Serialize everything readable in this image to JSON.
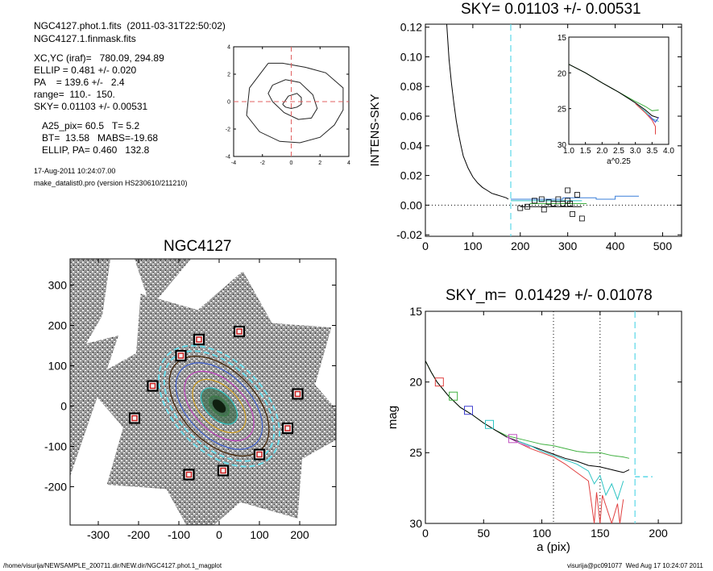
{
  "info": {
    "file": "NGC4127.phot.1.fits  (2011-03-31T22:50:02)",
    "mask": "NGC4127.1.finmask.fits",
    "xcyc": "XC,YC (iraf)=   780.09, 294.89",
    "ellip": "ELLIP = 0.481 +/- 0.020",
    "pa": "PA    = 139.6 +/-   2.4",
    "range": "range=  110.-  150.",
    "sky": "SKY= 0.01103 +/- 0.00531",
    "a25": "A25_pix= 60.5   T= 5.2",
    "bt": "BT=  13.58   MABS=-19.68",
    "ellip_pa": "ELLIP, PA= 0.460   132.8",
    "date": "17-Aug-2011 10:24:07.00",
    "program": "make_datalist0.pro (version HS230610/211210)"
  },
  "footer": {
    "path": "/home/visurija/NEWSAMPLE_200711.dir/NEW.dir/NGC4127.phot.1_magplot",
    "user": "visurija@pc091077  Wed Aug 17 10:24:07 2011"
  },
  "chart_data": [
    {
      "id": "isophote-inset",
      "type": "line",
      "title": "",
      "xlim": [
        -4,
        4
      ],
      "ylim": [
        -4,
        4
      ],
      "xticks": [
        "-4",
        "-2",
        "0",
        "2",
        "4"
      ],
      "yticks": [
        "-4",
        "-2",
        "0",
        "2",
        "4"
      ],
      "contours": [
        {
          "x": [
            -0.6,
            -0.2,
            0.4,
            0.7,
            0.7,
            0.4,
            0.0,
            -0.4,
            -0.6,
            -0.6
          ],
          "y": [
            -0.2,
            0.4,
            0.6,
            0.3,
            -0.2,
            -0.4,
            -0.5,
            -0.4,
            -0.2,
            -0.2
          ]
        },
        {
          "x": [
            -1.3,
            -0.4,
            0.6,
            1.5,
            1.8,
            1.4,
            0.5,
            -0.5,
            -1.3,
            -1.6,
            -1.3
          ],
          "y": [
            1.2,
            1.6,
            1.4,
            0.5,
            -0.5,
            -1.2,
            -1.3,
            -0.8,
            0.0,
            0.6,
            1.2
          ]
        },
        {
          "x": [
            -1.6,
            -0.6,
            1.0,
            2.4,
            3.6,
            3.6,
            3.0,
            2.0,
            0.6,
            -0.8,
            -2.2,
            -3.1,
            -2.9,
            -1.6
          ],
          "y": [
            2.8,
            2.8,
            2.5,
            2.1,
            1.0,
            -0.6,
            -1.7,
            -2.6,
            -3.0,
            -2.9,
            -2.2,
            -1.0,
            1.0,
            2.8
          ]
        }
      ],
      "crosshair": {
        "x": 0,
        "y": 0
      }
    },
    {
      "id": "sky-profile",
      "type": "line",
      "title": "SKY= 0.01103 +/- 0.00531",
      "xlabel": "",
      "ylabel": "INTENS-SKY",
      "xlim": [
        0,
        540
      ],
      "ylim": [
        -0.021,
        0.122
      ],
      "xticks": [
        "0",
        "100",
        "200",
        "300",
        "400",
        "500"
      ],
      "yticks": [
        "-0.02",
        "0.00",
        "0.02",
        "0.04",
        "0.06",
        "0.08",
        "0.10",
        "0.12"
      ],
      "profile": {
        "x": [
          45,
          50,
          55,
          60,
          65,
          70,
          75,
          80,
          90,
          100,
          110,
          120,
          130,
          140,
          150,
          160,
          170,
          175
        ],
        "y": [
          0.122,
          0.098,
          0.082,
          0.069,
          0.057,
          0.048,
          0.04,
          0.033,
          0.025,
          0.019,
          0.015,
          0.012,
          0.01,
          0.008,
          0.007,
          0.006,
          0.005,
          0.004
        ]
      },
      "sky_radius": 180,
      "boxes": {
        "x": [
          200,
          215,
          230,
          245,
          260,
          270,
          280,
          290,
          300,
          310,
          320,
          330,
          300,
          305,
          250
        ],
        "y": [
          -0.002,
          -0.001,
          0.003,
          0.004,
          0.002,
          0.001,
          0.004,
          0.001,
          0.01,
          -0.006,
          0.007,
          -0.009,
          0.003,
          0.001,
          -0.003
        ]
      },
      "segments": [
        {
          "color": "#3a7fd9",
          "x": [
            180,
            290,
            290,
            360,
            360,
            400,
            400,
            450
          ],
          "y": [
            0.004,
            0.004,
            0.005,
            0.005,
            0.004,
            0.004,
            0.006,
            0.006
          ]
        },
        {
          "color": "#2ec4c4",
          "x": [
            180,
            330
          ],
          "y": [
            0.003,
            0.003
          ]
        },
        {
          "color": "#40b040",
          "x": [
            220,
            340
          ],
          "y": [
            0.001,
            0.001
          ]
        },
        {
          "color": "#000000",
          "x": [
            200,
            330
          ],
          "y": [
            -0.001,
            -0.001
          ]
        }
      ],
      "inset": {
        "xlabel": "a^0.25",
        "xlim": [
          1.0,
          4.0
        ],
        "ylim": [
          15,
          30
        ],
        "xticks": [
          "1.0",
          "1.5",
          "2.0",
          "2.5",
          "3.0",
          "3.5",
          "4.0"
        ],
        "yticks": [
          "15",
          "20",
          "25",
          "30"
        ],
        "series": [
          {
            "color": "#40b040",
            "x": [
              1.0,
              1.5,
              2.0,
              2.5,
              3.0,
              3.3,
              3.5,
              3.7
            ],
            "y": [
              18.8,
              20.0,
              21.4,
              22.7,
              24.0,
              24.7,
              25.3,
              25.2
            ]
          },
          {
            "color": "#000000",
            "x": [
              1.0,
              1.5,
              2.0,
              2.5,
              3.0,
              3.3,
              3.5,
              3.7
            ],
            "y": [
              18.8,
              20.0,
              21.4,
              22.7,
              24.2,
              25.2,
              26.0,
              26.3
            ]
          },
          {
            "color": "#2ec4c4",
            "x": [
              3.0,
              3.3,
              3.5,
              3.7
            ],
            "y": [
              24.3,
              25.4,
              26.4,
              26.8
            ]
          },
          {
            "color": "#e04040",
            "x": [
              3.0,
              3.3,
              3.5,
              3.6,
              3.6
            ],
            "y": [
              24.3,
              25.6,
              26.6,
              27.5,
              28.6
            ]
          },
          {
            "color": "#4040d0",
            "x": [
              3.4,
              3.6,
              3.7
            ],
            "y": [
              25.9,
              26.9,
              26.2
            ]
          }
        ]
      }
    },
    {
      "id": "galaxy-image",
      "type": "scatter",
      "title": "NGC4127",
      "xlim": [
        -370,
        290
      ],
      "ylim": [
        -295,
        365
      ],
      "xticks": [
        "-300",
        "-200",
        "-100",
        "0",
        "100",
        "200"
      ],
      "yticks": [
        "-200",
        "-100",
        "0",
        "100",
        "200",
        "300"
      ],
      "sky_boxes": {
        "x": [
          -50,
          50,
          -95,
          -165,
          -210,
          -75,
          10,
          100,
          170,
          195
        ],
        "y": [
          165,
          185,
          125,
          50,
          -30,
          -170,
          -160,
          -120,
          -55,
          30
        ]
      },
      "ellipses": {
        "center": [
          0,
          0
        ],
        "pa": 135,
        "axes": [
          [
            30,
            18
          ],
          [
            55,
            32
          ],
          [
            80,
            48
          ],
          [
            105,
            62
          ],
          [
            130,
            78
          ],
          [
            150,
            90
          ]
        ],
        "colors": [
          "#40b040",
          "#2ec4c4",
          "#d0a020",
          "#c040c0",
          "#4060d0",
          "#402000"
        ],
        "dashed_axes": [
          [
            165,
            100
          ],
          [
            180,
            112
          ]
        ]
      }
    },
    {
      "id": "mag-profile",
      "type": "line",
      "title": "SKY_m=  0.01429 +/- 0.01078",
      "xlabel": "a (pix)",
      "ylabel": "mag",
      "xlim": [
        0,
        220
      ],
      "ylim": [
        15,
        30
      ],
      "xticks": [
        "0",
        "50",
        "100",
        "150",
        "200"
      ],
      "yticks": [
        "15",
        "20",
        "25",
        "30"
      ],
      "vlines_dotted": [
        110,
        150
      ],
      "vline_dashed": 180,
      "sky_level_line": {
        "x": [
          180,
          195
        ],
        "y": [
          26.7,
          26.7
        ]
      },
      "series": [
        {
          "name": "",
          "color": "#40b040",
          "x": [
            0,
            5,
            10,
            20,
            30,
            40,
            50,
            60,
            70,
            80,
            90,
            100,
            110,
            120,
            130,
            140,
            150,
            160,
            170,
            175
          ],
          "y": [
            18.5,
            19.3,
            20.0,
            21.0,
            21.8,
            22.3,
            22.9,
            23.4,
            23.8,
            24.0,
            24.2,
            24.4,
            24.5,
            24.7,
            24.9,
            25.0,
            25.0,
            25.2,
            25.3,
            25.4
          ]
        },
        {
          "name": "",
          "color": "#000000",
          "x": [
            0,
            5,
            10,
            20,
            30,
            40,
            50,
            60,
            70,
            80,
            90,
            100,
            110,
            120,
            130,
            140,
            150,
            160,
            170,
            175
          ],
          "y": [
            18.5,
            19.3,
            20.0,
            21.0,
            21.8,
            22.3,
            22.9,
            23.4,
            23.9,
            24.2,
            24.5,
            24.8,
            25.1,
            25.4,
            25.6,
            25.9,
            26.0,
            26.2,
            26.4,
            26.2
          ]
        },
        {
          "name": "",
          "color": "#2ec4c4",
          "x": [
            80,
            90,
            100,
            110,
            120,
            130,
            140,
            145,
            150,
            155,
            160,
            165,
            170
          ],
          "y": [
            24.2,
            24.5,
            24.9,
            25.2,
            25.5,
            25.8,
            26.3,
            27.2,
            26.6,
            28.0,
            27.2,
            28.3,
            27.0
          ]
        },
        {
          "name": "",
          "color": "#e04040",
          "x": [
            80,
            90,
            100,
            110,
            120,
            130,
            140,
            145,
            147,
            150,
            152,
            160,
            165,
            167,
            170
          ],
          "y": [
            24.3,
            24.7,
            25.0,
            25.3,
            25.8,
            26.4,
            27.0,
            30,
            27.8,
            30,
            28.0,
            30,
            28.6,
            30,
            28.3
          ]
        },
        {
          "name": "",
          "color": "#c050c0",
          "x": [
            70,
            80,
            90
          ],
          "y": [
            23.9,
            24.3,
            24.6
          ]
        }
      ],
      "boxes": [
        {
          "color": "#e04040",
          "x": 12,
          "y": 20.0
        },
        {
          "color": "#40b040",
          "x": 24,
          "y": 21.0
        },
        {
          "color": "#4040d0",
          "x": 37,
          "y": 22.0
        },
        {
          "color": "#2ec4c4",
          "x": 55,
          "y": 23.0
        },
        {
          "color": "#c050c0",
          "x": 75,
          "y": 24.0
        }
      ]
    }
  ]
}
